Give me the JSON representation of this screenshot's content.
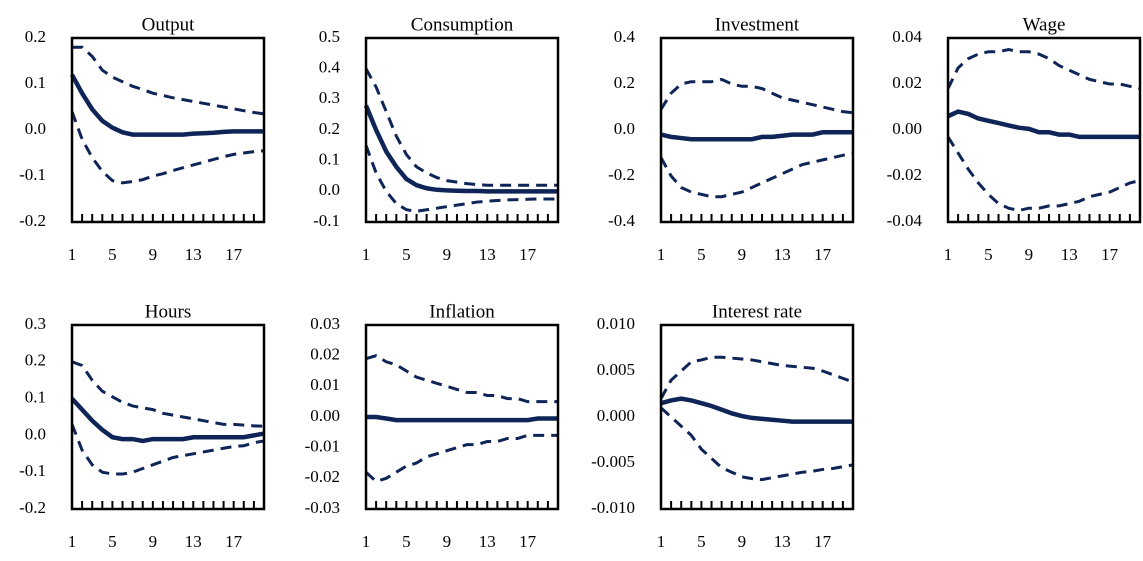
{
  "chart_data": [
    {
      "type": "line",
      "title": "Output",
      "x": [
        1,
        2,
        3,
        4,
        5,
        6,
        7,
        8,
        9,
        10,
        11,
        12,
        13,
        14,
        15,
        16,
        17,
        18,
        19,
        20
      ],
      "xlim": [
        1,
        20
      ],
      "xticks": [
        1,
        5,
        9,
        13,
        17
      ],
      "ylim": [
        -0.2,
        0.2
      ],
      "yticks": [
        -0.2,
        -0.1,
        {
          "value": 0,
          "label": "0.0"
        },
        0.1,
        0.2
      ],
      "series": [
        {
          "color": "#0f2557",
          "line_style": "solid",
          "values": [
            0.12,
            0.08,
            0.045,
            0.02,
            0.005,
            -0.005,
            -0.01,
            -0.01,
            -0.01,
            -0.01,
            -0.01,
            -0.01,
            -0.008,
            -0.007,
            -0.006,
            -0.004,
            -0.003,
            -0.003,
            -0.003,
            -0.003
          ]
        },
        {
          "color": "#0f2557",
          "line_style": "dashed",
          "values": [
            0.18,
            0.18,
            0.16,
            0.13,
            0.115,
            0.105,
            0.095,
            0.088,
            0.08,
            0.075,
            0.07,
            0.066,
            0.062,
            0.058,
            0.054,
            0.05,
            0.046,
            0.042,
            0.038,
            0.035
          ]
        },
        {
          "color": "#0f2557",
          "line_style": "dashed",
          "values": [
            0.04,
            -0.02,
            -0.06,
            -0.09,
            -0.11,
            -0.115,
            -0.112,
            -0.108,
            -0.1,
            -0.095,
            -0.088,
            -0.082,
            -0.076,
            -0.07,
            -0.064,
            -0.058,
            -0.053,
            -0.05,
            -0.047,
            -0.045
          ]
        }
      ]
    },
    {
      "type": "line",
      "title": "Consumption",
      "x": [
        1,
        2,
        3,
        4,
        5,
        6,
        7,
        8,
        9,
        10,
        11,
        12,
        13,
        14,
        15,
        16,
        17,
        18,
        19,
        20
      ],
      "xlim": [
        1,
        20
      ],
      "xticks": [
        1,
        5,
        9,
        13,
        17
      ],
      "ylim": [
        -0.1,
        0.5
      ],
      "yticks": [
        -0.1,
        {
          "value": 0,
          "label": "0.0"
        },
        0.1,
        0.2,
        0.3,
        0.4,
        0.5
      ],
      "series": [
        {
          "color": "#0f2557",
          "line_style": "solid",
          "values": [
            0.28,
            0.2,
            0.13,
            0.08,
            0.04,
            0.02,
            0.01,
            0.005,
            0.003,
            0.002,
            0.001,
            0.001,
            0,
            0,
            0,
            0,
            0,
            0,
            0,
            0
          ]
        },
        {
          "color": "#0f2557",
          "line_style": "dashed",
          "values": [
            0.4,
            0.34,
            0.26,
            0.18,
            0.12,
            0.08,
            0.06,
            0.045,
            0.035,
            0.03,
            0.025,
            0.022,
            0.02,
            0.02,
            0.02,
            0.02,
            0.02,
            0.02,
            0.02,
            0.02
          ]
        },
        {
          "color": "#0f2557",
          "line_style": "dashed",
          "values": [
            0.15,
            0.06,
            0.0,
            -0.04,
            -0.06,
            -0.065,
            -0.06,
            -0.055,
            -0.05,
            -0.045,
            -0.04,
            -0.035,
            -0.032,
            -0.03,
            -0.028,
            -0.027,
            -0.026,
            -0.025,
            -0.025,
            -0.025
          ]
        }
      ]
    },
    {
      "type": "line",
      "title": "Investment",
      "x": [
        1,
        2,
        3,
        4,
        5,
        6,
        7,
        8,
        9,
        10,
        11,
        12,
        13,
        14,
        15,
        16,
        17,
        18,
        19,
        20
      ],
      "xlim": [
        1,
        20
      ],
      "xticks": [
        1,
        5,
        9,
        13,
        17
      ],
      "ylim": [
        -0.4,
        0.4
      ],
      "yticks": [
        -0.4,
        -0.2,
        {
          "value": 0,
          "label": "0.0"
        },
        0.2,
        0.4
      ],
      "series": [
        {
          "color": "#0f2557",
          "line_style": "solid",
          "values": [
            -0.02,
            -0.03,
            -0.035,
            -0.04,
            -0.04,
            -0.04,
            -0.04,
            -0.04,
            -0.04,
            -0.04,
            -0.03,
            -0.03,
            -0.025,
            -0.02,
            -0.02,
            -0.02,
            -0.01,
            -0.01,
            -0.01,
            -0.01
          ]
        },
        {
          "color": "#0f2557",
          "line_style": "dashed",
          "values": [
            0.09,
            0.16,
            0.2,
            0.21,
            0.21,
            0.21,
            0.22,
            0.2,
            0.19,
            0.19,
            0.18,
            0.16,
            0.14,
            0.13,
            0.12,
            0.11,
            0.1,
            0.09,
            0.08,
            0.075
          ]
        },
        {
          "color": "#0f2557",
          "line_style": "dashed",
          "values": [
            -0.12,
            -0.2,
            -0.25,
            -0.27,
            -0.28,
            -0.29,
            -0.29,
            -0.28,
            -0.27,
            -0.25,
            -0.23,
            -0.21,
            -0.19,
            -0.17,
            -0.15,
            -0.14,
            -0.13,
            -0.12,
            -0.11,
            -0.1
          ]
        }
      ]
    },
    {
      "type": "line",
      "title": "Wage",
      "x": [
        1,
        2,
        3,
        4,
        5,
        6,
        7,
        8,
        9,
        10,
        11,
        12,
        13,
        14,
        15,
        16,
        17,
        18,
        19,
        20
      ],
      "xlim": [
        1,
        20
      ],
      "xticks": [
        1,
        5,
        9,
        13,
        17
      ],
      "ylim": [
        -0.04,
        0.04
      ],
      "yticks": [
        -0.04,
        -0.02,
        {
          "value": 0,
          "label": "0.00"
        },
        0.02,
        0.04
      ],
      "series": [
        {
          "color": "#0f2557",
          "line_style": "solid",
          "values": [
            0.006,
            0.008,
            0.007,
            0.005,
            0.004,
            0.003,
            0.002,
            0.001,
            0.0005,
            -0.001,
            -0.001,
            -0.002,
            -0.002,
            -0.003,
            -0.003,
            -0.003,
            -0.003,
            -0.003,
            -0.003,
            -0.003
          ]
        },
        {
          "color": "#0f2557",
          "line_style": "dashed",
          "values": [
            0.018,
            0.027,
            0.031,
            0.033,
            0.034,
            0.034,
            0.035,
            0.034,
            0.034,
            0.033,
            0.031,
            0.028,
            0.026,
            0.024,
            0.022,
            0.021,
            0.02,
            0.02,
            0.019,
            0.018
          ]
        },
        {
          "color": "#0f2557",
          "line_style": "dashed",
          "values": [
            -0.003,
            -0.01,
            -0.017,
            -0.023,
            -0.028,
            -0.032,
            -0.034,
            -0.035,
            -0.034,
            -0.034,
            -0.033,
            -0.033,
            -0.032,
            -0.031,
            -0.029,
            -0.028,
            -0.027,
            -0.025,
            -0.023,
            -0.022
          ]
        }
      ]
    },
    {
      "type": "line",
      "title": "Hours",
      "x": [
        1,
        2,
        3,
        4,
        5,
        6,
        7,
        8,
        9,
        10,
        11,
        12,
        13,
        14,
        15,
        16,
        17,
        18,
        19,
        20
      ],
      "xlim": [
        1,
        20
      ],
      "xticks": [
        1,
        5,
        9,
        13,
        17
      ],
      "ylim": [
        -0.2,
        0.3
      ],
      "yticks": [
        -0.2,
        -0.1,
        {
          "value": 0,
          "label": "0.0"
        },
        0.1,
        0.2,
        0.3
      ],
      "series": [
        {
          "color": "#0f2557",
          "line_style": "solid",
          "values": [
            0.1,
            0.07,
            0.04,
            0.015,
            -0.005,
            -0.01,
            -0.01,
            -0.015,
            -0.01,
            -0.01,
            -0.01,
            -0.01,
            -0.005,
            -0.005,
            -0.005,
            -0.005,
            -0.005,
            -0.005,
            0,
            0.005
          ]
        },
        {
          "color": "#0f2557",
          "line_style": "dashed",
          "values": [
            0.2,
            0.19,
            0.15,
            0.12,
            0.105,
            0.09,
            0.08,
            0.075,
            0.07,
            0.06,
            0.055,
            0.05,
            0.045,
            0.04,
            0.035,
            0.03,
            0.03,
            0.028,
            0.026,
            0.025
          ]
        },
        {
          "color": "#0f2557",
          "line_style": "dashed",
          "values": [
            0.03,
            -0.04,
            -0.08,
            -0.1,
            -0.105,
            -0.105,
            -0.1,
            -0.09,
            -0.08,
            -0.07,
            -0.06,
            -0.055,
            -0.05,
            -0.045,
            -0.04,
            -0.035,
            -0.03,
            -0.028,
            -0.02,
            -0.015
          ]
        }
      ]
    },
    {
      "type": "line",
      "title": "Inflation",
      "x": [
        1,
        2,
        3,
        4,
        5,
        6,
        7,
        8,
        9,
        10,
        11,
        12,
        13,
        14,
        15,
        16,
        17,
        18,
        19,
        20
      ],
      "xlim": [
        1,
        20
      ],
      "xticks": [
        1,
        5,
        9,
        13,
        17
      ],
      "ylim": [
        -0.03,
        0.03
      ],
      "yticks": [
        -0.03,
        -0.02,
        -0.01,
        {
          "value": 0,
          "label": "0.00"
        },
        0.01,
        0.02,
        0.03
      ],
      "series": [
        {
          "color": "#0f2557",
          "line_style": "solid",
          "values": [
            0,
            0,
            -0.0005,
            -0.001,
            -0.001,
            -0.001,
            -0.001,
            -0.001,
            -0.001,
            -0.001,
            -0.001,
            -0.001,
            -0.001,
            -0.001,
            -0.001,
            -0.001,
            -0.001,
            -0.0005,
            -0.0005,
            -0.0005
          ]
        },
        {
          "color": "#0f2557",
          "line_style": "dashed",
          "values": [
            0.019,
            0.02,
            0.018,
            0.017,
            0.015,
            0.013,
            0.012,
            0.011,
            0.01,
            0.009,
            0.008,
            0.008,
            0.007,
            0.007,
            0.006,
            0.006,
            0.005,
            0.005,
            0.005,
            0.005
          ]
        },
        {
          "color": "#0f2557",
          "line_style": "dashed",
          "values": [
            -0.018,
            -0.021,
            -0.02,
            -0.018,
            -0.016,
            -0.015,
            -0.013,
            -0.012,
            -0.011,
            -0.01,
            -0.009,
            -0.009,
            -0.008,
            -0.008,
            -0.007,
            -0.007,
            -0.006,
            -0.006,
            -0.006,
            -0.006
          ]
        }
      ]
    },
    {
      "type": "line",
      "title": "Interest rate",
      "x": [
        1,
        2,
        3,
        4,
        5,
        6,
        7,
        8,
        9,
        10,
        11,
        12,
        13,
        14,
        15,
        16,
        17,
        18,
        19,
        20
      ],
      "xlim": [
        1,
        20
      ],
      "xticks": [
        1,
        5,
        9,
        13,
        17
      ],
      "ylim": [
        -0.01,
        0.01
      ],
      "yticks": [
        {
          "value": -0.01,
          "label": "-0.010"
        },
        -0.005,
        {
          "value": 0,
          "label": "0.000"
        },
        0.005,
        {
          "value": 0.01,
          "label": "0.010"
        }
      ],
      "series": [
        {
          "color": "#0f2557",
          "line_style": "solid",
          "values": [
            0.0015,
            0.0018,
            0.002,
            0.0018,
            0.0015,
            0.0012,
            0.0008,
            0.0004,
            0.0001,
            -0.0001,
            -0.0002,
            -0.0003,
            -0.0004,
            -0.0005,
            -0.0005,
            -0.0005,
            -0.0005,
            -0.0005,
            -0.0005,
            -0.0005
          ]
        },
        {
          "color": "#0f2557",
          "line_style": "dashed",
          "values": [
            0.002,
            0.004,
            0.005,
            0.006,
            0.0062,
            0.0065,
            0.0065,
            0.0064,
            0.0063,
            0.0062,
            0.006,
            0.0058,
            0.0056,
            0.0055,
            0.0054,
            0.0053,
            0.005,
            0.0046,
            0.0042,
            0.0038
          ]
        },
        {
          "color": "#0f2557",
          "line_style": "dashed",
          "values": [
            0.001,
            0,
            -0.001,
            -0.002,
            -0.0035,
            -0.0045,
            -0.0055,
            -0.006,
            -0.0065,
            -0.0067,
            -0.0068,
            -0.0066,
            -0.0064,
            -0.0062,
            -0.006,
            -0.0059,
            -0.0057,
            -0.0056,
            -0.0054,
            -0.0052
          ]
        }
      ]
    }
  ]
}
